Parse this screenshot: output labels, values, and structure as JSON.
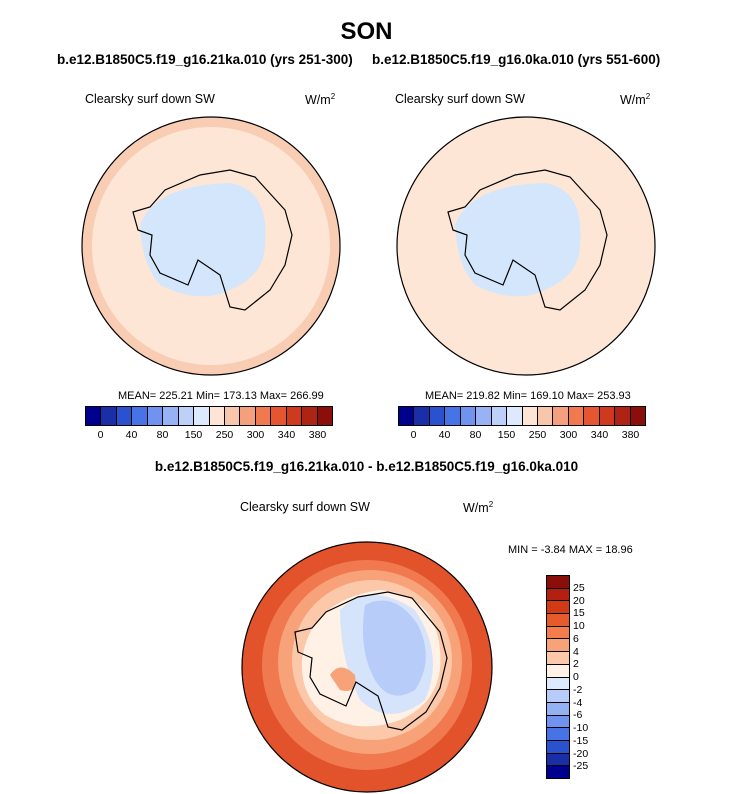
{
  "figure_title": "SON",
  "left_subtitle": "b.e12.B1850C5.f19_g16.21ka.010 (yrs 251-300)",
  "right_subtitle": "b.e12.B1850C5.f19_g16.0ka.010 (yrs 551-600)",
  "diff_subtitle": "b.e12.B1850C5.f19_g16.21ka.010 - b.e12.B1850C5.f19_g16.0ka.010",
  "panels": [
    {
      "variable": "Clearsky surf down SW",
      "units_base": "W/m",
      "units_exp": "2",
      "stats": "MEAN= 225.21  Min= 173.13  Max= 266.99"
    },
    {
      "variable": "Clearsky surf down SW",
      "units_base": "W/m",
      "units_exp": "2",
      "stats": "MEAN= 219.82  Min= 169.10  Max= 253.93"
    },
    {
      "variable": "Clearsky surf down SW",
      "units_base": "W/m",
      "units_exp": "2",
      "stats": "MIN =  -3.84 MAX =  18.96"
    }
  ],
  "abs_colorbar": {
    "colors": [
      "#00008e",
      "#1a2ea8",
      "#2a52cf",
      "#4674e6",
      "#6f93ee",
      "#97b3f5",
      "#bcd0fa",
      "#ddeafd",
      "#fde4d4",
      "#f8c6ac",
      "#f5a07c",
      "#f07950",
      "#e55530",
      "#cf3a1e",
      "#ae2414",
      "#8a0e0a"
    ],
    "labels": [
      "0",
      "40",
      "80",
      "150",
      "250",
      "300",
      "340",
      "380"
    ]
  },
  "diff_colorbar": {
    "colors": [
      "#8a0e0a",
      "#b3200f",
      "#d23a16",
      "#e65a2c",
      "#f37d4d",
      "#f8a27a",
      "#fcc8aa",
      "#fff1e6",
      "#ddeafd",
      "#b7ccf8",
      "#94b2f3",
      "#6f93ee",
      "#4674e6",
      "#2a52cf",
      "#1a2ea8",
      "#00008e"
    ],
    "labels": [
      "25",
      "20",
      "15",
      "10",
      "6",
      "4",
      "2",
      "0",
      "-2",
      "-4",
      "-6",
      "-10",
      "-15",
      "-20",
      "-25"
    ]
  },
  "colors": {
    "land_absolute": "#d4e6fb",
    "ocean_absolute": "#fde6d6",
    "diff_ocean_strong": "#e2532c",
    "diff_land": "#cfe0fb"
  }
}
